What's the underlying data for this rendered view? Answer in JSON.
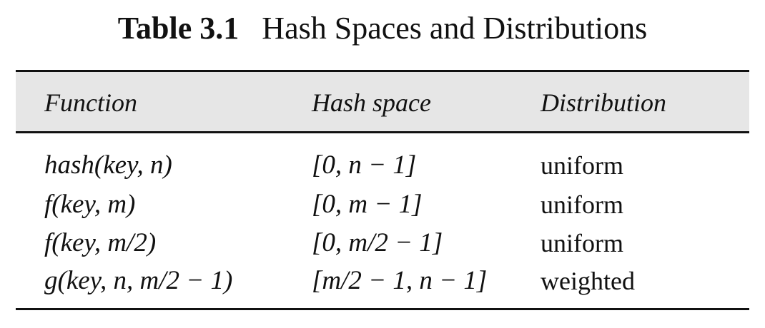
{
  "caption": {
    "label": "Table 3.1",
    "title": "Hash Spaces and Distributions"
  },
  "table": {
    "headers": [
      "Function",
      "Hash space",
      "Distribution"
    ],
    "rows": [
      {
        "function": "hash(key, n)",
        "hash_space": "[0, n − 1]",
        "distribution": "uniform"
      },
      {
        "function": "f(key, m)",
        "hash_space": "[0, m − 1]",
        "distribution": "uniform"
      },
      {
        "function": "f(key, m/2)",
        "hash_space": "[0, m/2 − 1]",
        "distribution": "uniform"
      },
      {
        "function": "g(key, n, m/2 − 1)",
        "hash_space": "[m/2 − 1, n − 1]",
        "distribution": "weighted"
      }
    ]
  }
}
